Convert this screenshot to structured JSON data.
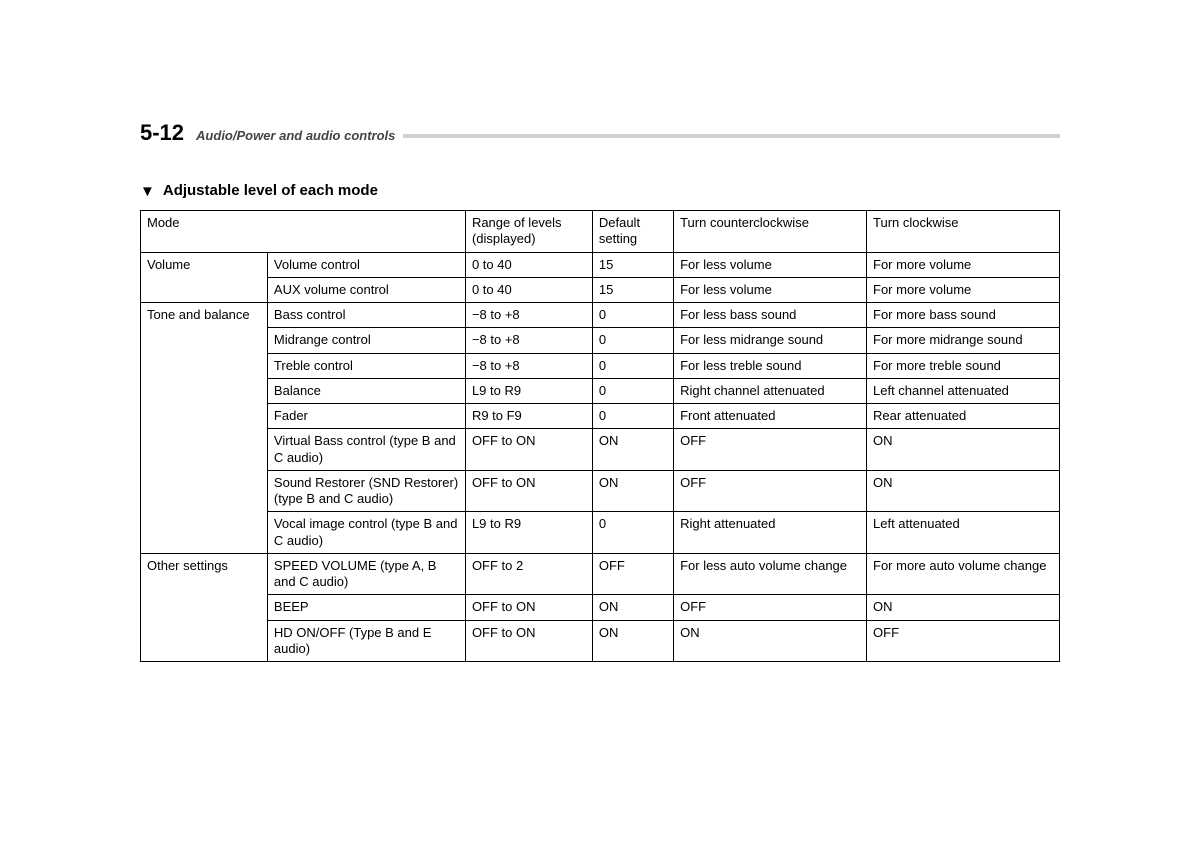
{
  "page": {
    "number": "5-12",
    "breadcrumb": "Audio/Power and audio controls"
  },
  "section": {
    "marker": "▼",
    "title": "Adjustable level of each mode"
  },
  "table": {
    "headers": {
      "mode": "Mode",
      "range": "Range of levels (displayed)",
      "default": "Default setting",
      "ccw": "Turn counterclockwise",
      "cw": "Turn clockwise"
    },
    "groups": [
      {
        "mode": "Volume",
        "rows": [
          {
            "name": "Volume control",
            "range": "0 to 40",
            "default": "15",
            "ccw": "For less volume",
            "cw": "For more volume"
          },
          {
            "name": "AUX volume control",
            "range": "0 to 40",
            "default": "15",
            "ccw": "For less volume",
            "cw": "For more volume"
          }
        ]
      },
      {
        "mode": "Tone and balance",
        "rows": [
          {
            "name": "Bass control",
            "range": "−8 to +8",
            "default": "0",
            "ccw": "For less bass sound",
            "cw": "For more bass sound"
          },
          {
            "name": "Midrange control",
            "range": "−8 to +8",
            "default": "0",
            "ccw": "For less midrange sound",
            "cw": "For more midrange sound"
          },
          {
            "name": "Treble control",
            "range": "−8 to +8",
            "default": "0",
            "ccw": "For less treble sound",
            "cw": "For more treble sound"
          },
          {
            "name": "Balance",
            "range": "L9 to R9",
            "default": "0",
            "ccw": "Right channel attenuated",
            "cw": "Left channel attenuated"
          },
          {
            "name": "Fader",
            "range": "R9 to F9",
            "default": "0",
            "ccw": "Front attenuated",
            "cw": "Rear attenuated"
          },
          {
            "name": "Virtual Bass control (type B and C audio)",
            "range": "OFF to ON",
            "default": "ON",
            "ccw": "OFF",
            "cw": "ON"
          },
          {
            "name": "Sound Restorer (SND Restorer) (type B and C audio)",
            "range": "OFF to ON",
            "default": "ON",
            "ccw": "OFF",
            "cw": "ON"
          },
          {
            "name": "Vocal image control (type B and C audio)",
            "range": "L9 to R9",
            "default": "0",
            "ccw": "Right attenuated",
            "cw": "Left attenuated"
          }
        ]
      },
      {
        "mode": "Other settings",
        "rows": [
          {
            "name": "SPEED VOLUME (type A, B and C audio)",
            "range": "OFF to 2",
            "default": "OFF",
            "ccw": "For less auto volume change",
            "cw": "For more auto volume change"
          },
          {
            "name": "BEEP",
            "range": "OFF to ON",
            "default": "ON",
            "ccw": "OFF",
            "cw": "ON"
          },
          {
            "name": "HD ON/OFF (Type B and E audio)",
            "range": "OFF to ON",
            "default": "ON",
            "ccw": "ON",
            "cw": "OFF"
          }
        ]
      }
    ]
  }
}
